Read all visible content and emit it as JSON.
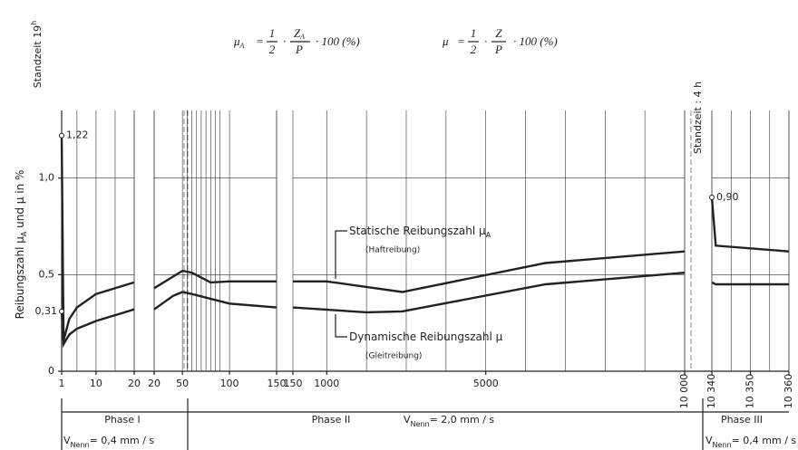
{
  "chart_data": {
    "type": "line",
    "formulas": [
      {
        "lhs": "μ",
        "lhs_sub": "A",
        "eq": "=",
        "n1": "1",
        "d1": "2",
        "n2": "Z",
        "n2_sub": "A",
        "d2": "P",
        "tail": "· 100 (%)"
      },
      {
        "lhs": "μ",
        "eq": "=",
        "n1": "1",
        "d1": "2",
        "n2": "Z",
        "d2": "P",
        "tail": "· 100 (%)"
      }
    ],
    "ylabel": "Reibungszahl μ",
    "ylabel_sub": "A",
    "ylabel_tail": "und μ in %",
    "standzeit_start": {
      "text": "Standzeit 19",
      "sup": "h"
    },
    "standzeit_mid": "Standzeit : 4 h",
    "ylim": [
      0,
      1.35
    ],
    "yticks": [
      0,
      {
        "value": 0.5,
        "label": "0,5"
      },
      {
        "value": 1.0,
        "label": "1,0"
      }
    ],
    "grid": true,
    "series": [
      {
        "name": "Statische Reibungszahl μ",
        "name_sub": "A",
        "note": "(Haftreibung)",
        "color": "#222"
      },
      {
        "name": "Dynamische Reibungszahl μ",
        "note": "(Gleitreibung)",
        "color": "#222"
      }
    ],
    "panels": [
      {
        "xlim": [
          1,
          20
        ],
        "xticks": [
          1,
          10,
          20
        ],
        "xgrid": [
          1,
          5,
          10,
          15,
          20
        ],
        "lines": [
          {
            "x": [
              1,
              1.5,
              3,
              5,
              10,
              20
            ],
            "values": [
              1.22,
              0.16,
              0.27,
              0.33,
              0.4,
              0.46
            ],
            "value_labels": [
              "1,22",
              null,
              null,
              null,
              null,
              null
            ]
          },
          {
            "x": [
              1,
              1.5,
              3,
              5,
              10,
              20
            ],
            "values": [
              0.31,
              0.14,
              0.19,
              0.22,
              0.26,
              0.32
            ],
            "value_labels": [
              "0,31",
              null,
              null,
              null,
              null,
              null
            ]
          }
        ]
      },
      {
        "xlim": [
          20,
          150
        ],
        "xticks": [
          20,
          50,
          100,
          150
        ],
        "xgrid": [
          20,
          50,
          55,
          60,
          65,
          70,
          75,
          80,
          85,
          90,
          100,
          150
        ],
        "lines": [
          {
            "x": [
              20,
              40,
              50,
              60,
              80,
              100,
              150
            ],
            "values": [
              0.43,
              0.49,
              0.52,
              0.51,
              0.46,
              0.465,
              0.465
            ]
          },
          {
            "x": [
              20,
              40,
              50,
              60,
              100,
              150
            ],
            "values": [
              0.32,
              0.39,
              0.41,
              0.4,
              0.35,
              0.33
            ]
          }
        ]
      },
      {
        "xlim": [
          150,
          10000
        ],
        "xticks": [
          150,
          1000,
          5000,
          {
            "value": 10000,
            "label": "10 000"
          }
        ],
        "xgrid": [
          1000,
          2000,
          3000,
          4000,
          5000,
          6000,
          7000,
          8000,
          9000,
          10000
        ],
        "lines": [
          {
            "x": [
              150,
              1000,
              2900,
              6500,
              10000
            ],
            "values": [
              0.465,
              0.465,
              0.41,
              0.56,
              0.62
            ]
          },
          {
            "x": [
              150,
              2000,
              2900,
              6500,
              10000
            ],
            "values": [
              0.33,
              0.305,
              0.31,
              0.45,
              0.51
            ]
          }
        ]
      },
      {
        "xlim": [
          10340,
          10360
        ],
        "xticks": [
          {
            "value": 10340,
            "label": "10 340"
          },
          {
            "value": 10350,
            "label": "10 350"
          },
          {
            "value": 10360,
            "label": "10 360"
          }
        ],
        "xgrid": [
          10340,
          10345,
          10350,
          10355,
          10360
        ],
        "lines": [
          {
            "x": [
              10340,
              10341,
              10360
            ],
            "values": [
              0.9,
              0.65,
              0.62
            ],
            "value_labels": [
              "0,90",
              null,
              null
            ]
          },
          {
            "x": [
              10340,
              10341,
              10360
            ],
            "values": [
              0.46,
              0.45,
              0.45
            ]
          }
        ]
      }
    ],
    "phases": [
      {
        "label": "Phase I",
        "v": "V",
        "v_sub": "Nenn",
        "speed": "= 0,4 mm / s"
      },
      {
        "label": "Phase II",
        "v": "V",
        "v_sub": "Nenn",
        "speed": "= 2,0 mm / s"
      },
      {
        "label": "Phase III",
        "v": "V",
        "v_sub": "Nenn",
        "speed": "= 0,4 mm / s"
      }
    ]
  }
}
